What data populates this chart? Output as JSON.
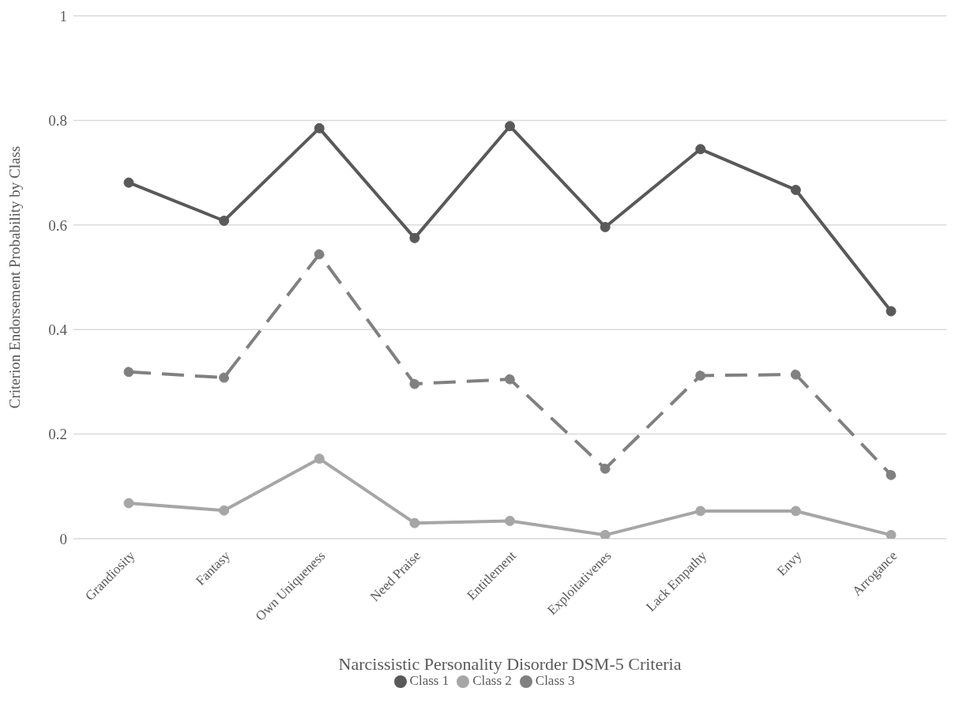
{
  "chart_data": {
    "type": "line",
    "xlabel": "Narcissistic Personality Disorder DSM-5 Criteria",
    "ylabel": "Criterion Endorsement Probability by Class",
    "categories": [
      "Grandiosity",
      "Fantasy",
      "Own Uniqueness",
      "Need Praise",
      "Entitlement",
      "Exploitativenes",
      "Lack Empathy",
      "Envy",
      "Arrogance"
    ],
    "series": [
      {
        "name": "Class 1",
        "color": "#595959",
        "line_style": "solid",
        "values": [
          0.681,
          0.608,
          0.785,
          0.575,
          0.789,
          0.596,
          0.745,
          0.667,
          0.435
        ]
      },
      {
        "name": "Class 2",
        "color": "#a6a6a6",
        "line_style": "solid",
        "values": [
          0.068,
          0.054,
          0.153,
          0.03,
          0.034,
          0.007,
          0.053,
          0.053,
          0.007
        ]
      },
      {
        "name": "Class 3",
        "color": "#808080",
        "line_style": "dashed",
        "values": [
          0.319,
          0.308,
          0.544,
          0.296,
          0.305,
          0.134,
          0.312,
          0.314,
          0.122
        ]
      }
    ],
    "ylim": [
      0,
      1
    ],
    "yticks": [
      0,
      0.2,
      0.4,
      0.6,
      0.8,
      1
    ],
    "grid": "y",
    "legend": "bottom",
    "marker": "circle"
  }
}
